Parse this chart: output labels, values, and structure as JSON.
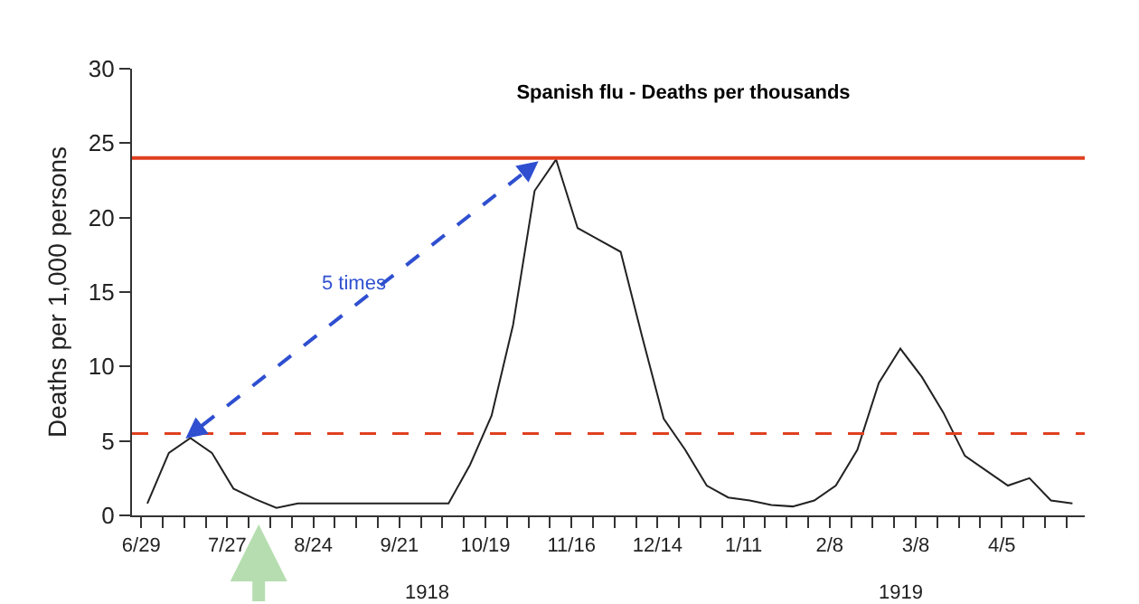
{
  "chart_data": {
    "type": "line",
    "title": "Spanish flu - Deaths per thousands",
    "ylabel": "Deaths per 1,000 persons",
    "x": [
      "1918-07-01",
      "1918-07-08",
      "1918-07-15",
      "1918-07-22",
      "1918-07-29",
      "1918-08-05",
      "1918-08-12",
      "1918-08-19",
      "1918-08-26",
      "1918-09-02",
      "1918-09-09",
      "1918-09-16",
      "1918-09-23",
      "1918-09-30",
      "1918-10-07",
      "1918-10-14",
      "1918-10-21",
      "1918-10-28",
      "1918-11-04",
      "1918-11-11",
      "1918-11-18",
      "1918-11-25",
      "1918-12-02",
      "1918-12-09",
      "1918-12-16",
      "1918-12-23",
      "1918-12-30",
      "1919-01-06",
      "1919-01-13",
      "1919-01-20",
      "1919-01-27",
      "1919-02-03",
      "1919-02-10",
      "1919-02-17",
      "1919-02-24",
      "1919-03-03",
      "1919-03-10",
      "1919-03-17",
      "1919-03-24",
      "1919-03-31",
      "1919-04-07",
      "1919-04-14",
      "1919-04-21",
      "1919-04-28"
    ],
    "series": [
      {
        "color": "#222222",
        "values": [
          0.8,
          4.2,
          5.2,
          4.2,
          1.8,
          1.1,
          0.5,
          0.8,
          0.8,
          0.8,
          0.8,
          0.8,
          0.8,
          0.8,
          0.8,
          3.4,
          6.7,
          12.8,
          21.8,
          23.9,
          19.3,
          18.5,
          17.7,
          12.0,
          6.5,
          4.4,
          2.0,
          1.2,
          1.0,
          0.7,
          0.6,
          1.0,
          2.0,
          4.4,
          8.9,
          11.2,
          9.3,
          6.9,
          4.0,
          3.0,
          2.0,
          2.5,
          1.0,
          0.8
        ]
      }
    ],
    "xlim": [
      "1918-06-26",
      "1919-05-02"
    ],
    "xticks": [
      {
        "value": "1918-06-29",
        "label": "6/29"
      },
      {
        "value": "1918-07-06",
        "label": null
      },
      {
        "value": "1918-07-13",
        "label": null
      },
      {
        "value": "1918-07-20",
        "label": null
      },
      {
        "value": "1918-07-27",
        "label": "7/27"
      },
      {
        "value": "1918-08-03",
        "label": null
      },
      {
        "value": "1918-08-10",
        "label": null
      },
      {
        "value": "1918-08-17",
        "label": null
      },
      {
        "value": "1918-08-24",
        "label": "8/24"
      },
      {
        "value": "1918-08-31",
        "label": null
      },
      {
        "value": "1918-09-07",
        "label": null
      },
      {
        "value": "1918-09-14",
        "label": null
      },
      {
        "value": "1918-09-21",
        "label": "9/21"
      },
      {
        "value": "1918-09-28",
        "label": null
      },
      {
        "value": "1918-10-05",
        "label": null
      },
      {
        "value": "1918-10-12",
        "label": null
      },
      {
        "value": "1918-10-19",
        "label": "10/19"
      },
      {
        "value": "1918-10-26",
        "label": null
      },
      {
        "value": "1918-11-02",
        "label": null
      },
      {
        "value": "1918-11-09",
        "label": null
      },
      {
        "value": "1918-11-16",
        "label": "11/16"
      },
      {
        "value": "1918-11-23",
        "label": null
      },
      {
        "value": "1918-11-30",
        "label": null
      },
      {
        "value": "1918-12-07",
        "label": null
      },
      {
        "value": "1918-12-14",
        "label": "12/14"
      },
      {
        "value": "1918-12-21",
        "label": null
      },
      {
        "value": "1918-12-28",
        "label": null
      },
      {
        "value": "1919-01-04",
        "label": null
      },
      {
        "value": "1919-01-11",
        "label": "1/11"
      },
      {
        "value": "1919-01-18",
        "label": null
      },
      {
        "value": "1919-01-25",
        "label": null
      },
      {
        "value": "1919-02-01",
        "label": null
      },
      {
        "value": "1919-02-08",
        "label": "2/8"
      },
      {
        "value": "1919-02-15",
        "label": null
      },
      {
        "value": "1919-02-22",
        "label": null
      },
      {
        "value": "1919-03-01",
        "label": null
      },
      {
        "value": "1919-03-08",
        "label": "3/8"
      },
      {
        "value": "1919-03-15",
        "label": null
      },
      {
        "value": "1919-03-22",
        "label": null
      },
      {
        "value": "1919-03-29",
        "label": null
      },
      {
        "value": "1919-04-05",
        "label": "4/5"
      },
      {
        "value": "1919-04-12",
        "label": null
      },
      {
        "value": "1919-04-19",
        "label": null
      },
      {
        "value": "1919-04-26",
        "label": null
      }
    ],
    "ylim": [
      0,
      30
    ],
    "yticks": [
      0,
      5,
      10,
      15,
      20,
      25,
      30
    ],
    "ref_lines": [
      {
        "axis": "y",
        "value": 24,
        "color": "#e04020",
        "line_style": "solid"
      },
      {
        "axis": "y",
        "value": 5.5,
        "color": "#e04020",
        "line_style": "dashed"
      }
    ],
    "annotations": [
      "5 times",
      "1918",
      "1919"
    ],
    "grid": false,
    "marker": "none",
    "line_style": "solid"
  }
}
